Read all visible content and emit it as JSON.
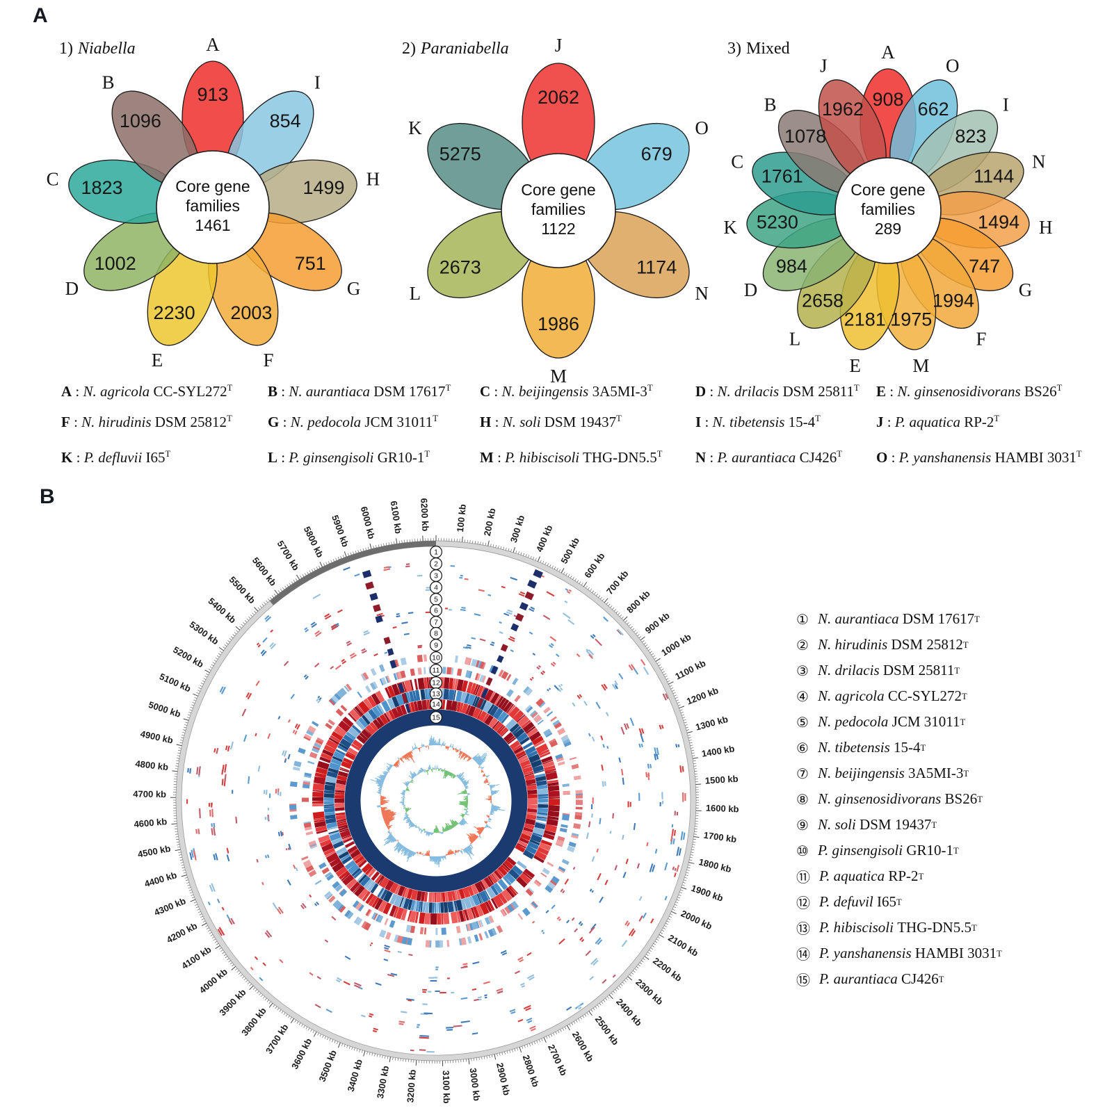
{
  "panelA": {
    "label": "A",
    "flowers": [
      {
        "title_prefix": "1)",
        "title_name": "Niabella",
        "core": {
          "line1": "Core gene",
          "line2": "families",
          "value": "1461"
        },
        "petals": [
          {
            "letter": "A",
            "value": "913",
            "color": "#ee2f2b"
          },
          {
            "letter": "I",
            "value": "854",
            "color": "#88c7e2"
          },
          {
            "letter": "H",
            "value": "1499",
            "color": "#b6ad86"
          },
          {
            "letter": "G",
            "value": "751",
            "color": "#f79d33"
          },
          {
            "letter": "F",
            "value": "2003",
            "color": "#f2ab39"
          },
          {
            "letter": "E",
            "value": "2230",
            "color": "#edc52f"
          },
          {
            "letter": "D",
            "value": "1002",
            "color": "#8eb463"
          },
          {
            "letter": "C",
            "value": "1823",
            "color": "#2da99b"
          },
          {
            "letter": "B",
            "value": "1096",
            "color": "#8d6f68"
          }
        ]
      },
      {
        "title_prefix": "2)",
        "title_name": "Paraniabella",
        "core": {
          "line1": "Core gene",
          "line2": "families",
          "value": "1122"
        },
        "petals": [
          {
            "letter": "J",
            "value": "2062",
            "color": "#ee332f"
          },
          {
            "letter": "O",
            "value": "679",
            "color": "#76c3dd"
          },
          {
            "letter": "N",
            "value": "1174",
            "color": "#daa258"
          },
          {
            "letter": "M",
            "value": "1986",
            "color": "#f1ad36"
          },
          {
            "letter": "L",
            "value": "2673",
            "color": "#a6b557"
          },
          {
            "letter": "K",
            "value": "5275",
            "color": "#568e86"
          }
        ]
      },
      {
        "title_prefix": "3)",
        "title_name": "Mixed",
        "core": {
          "line1": "Core gene",
          "line2": "families",
          "value": "289"
        },
        "petals": [
          {
            "letter": "A",
            "value": "908",
            "color": "#ee2f2b"
          },
          {
            "letter": "O",
            "value": "662",
            "color": "#70c0dc"
          },
          {
            "letter": "I",
            "value": "823",
            "color": "#a3c1b3"
          },
          {
            "letter": "N",
            "value": "1144",
            "color": "#b9a56f"
          },
          {
            "letter": "H",
            "value": "1494",
            "color": "#f2a04a"
          },
          {
            "letter": "G",
            "value": "747",
            "color": "#f69d33"
          },
          {
            "letter": "F",
            "value": "1994",
            "color": "#f1a83b"
          },
          {
            "letter": "M",
            "value": "1975",
            "color": "#f2b23d"
          },
          {
            "letter": "E",
            "value": "2181",
            "color": "#efc033"
          },
          {
            "letter": "L",
            "value": "2658",
            "color": "#b5b24d"
          },
          {
            "letter": "D",
            "value": "984",
            "color": "#88b472"
          },
          {
            "letter": "K",
            "value": "5230",
            "color": "#3ea585"
          },
          {
            "letter": "C",
            "value": "1761",
            "color": "#2e9c8f"
          },
          {
            "letter": "B",
            "value": "1078",
            "color": "#8b7a73"
          },
          {
            "letter": "J",
            "value": "1962",
            "color": "#c2514b"
          }
        ]
      }
    ],
    "legend": {
      "sep": " : ",
      "sup": "T",
      "items": [
        {
          "key": "A",
          "species": "N. agricola",
          "strain": "CC-SYL272"
        },
        {
          "key": "B",
          "species": "N. aurantiaca",
          "strain": "DSM 17617"
        },
        {
          "key": "C",
          "species": "N. beijingensis",
          "strain": "3A5MI-3"
        },
        {
          "key": "D",
          "species": "N. drilacis",
          "strain": "DSM 25811"
        },
        {
          "key": "E",
          "species": "N. ginsenosidivorans",
          "strain": "BS26"
        },
        {
          "key": "F",
          "species": "N. hirudinis",
          "strain": "DSM 25812"
        },
        {
          "key": "G",
          "species": "N. pedocola",
          "strain": "JCM 31011"
        },
        {
          "key": "H",
          "species": "N. soli",
          "strain": "DSM 19437"
        },
        {
          "key": "I",
          "species": "N. tibetensis",
          "strain": "15-4"
        },
        {
          "key": "J",
          "species": "P. aquatica",
          "strain": "RP-2"
        },
        {
          "key": "K",
          "species": "P. defluvii",
          "strain": "I65"
        },
        {
          "key": "L",
          "species": "P. ginsengisoli",
          "strain": "GR10-1"
        },
        {
          "key": "M",
          "species": "P. hibiscisoli",
          "strain": "THG-DN5.5"
        },
        {
          "key": "N",
          "species": "P. aurantiaca",
          "strain": "CJ426"
        },
        {
          "key": "O",
          "species": "P. yanshanensis",
          "strain": "HAMBI 3031"
        }
      ]
    }
  },
  "panelB": {
    "label": "B",
    "scale": {
      "unit": "kb",
      "genome_length_kb": 6250,
      "major_step_kb": 100,
      "minor_step_kb": 10,
      "first_label_kb": 100,
      "last_label_kb": 6200,
      "dark_segment_start_kb": 5560,
      "dark_segment_end_kb": 6250
    },
    "rings": [
      "1",
      "2",
      "3",
      "4",
      "5",
      "6",
      "7",
      "8",
      "9",
      "10",
      "11",
      "12",
      "13",
      "14",
      "15"
    ],
    "highlight_columns_kb": [
      420,
      5952
    ],
    "colors": {
      "scale_band": "#d6d6d6",
      "scale_edge": "#9a9a9a",
      "scale_dark_segment": "#6d6d6d",
      "tick": "#444444",
      "sparse_blues": [
        "#93bedc",
        "#5b99cf",
        "#3f7ab8"
      ],
      "sparse_reds": [
        "#e26a6a",
        "#d43f3f",
        "#c05a6b"
      ],
      "medium_blues": [
        "#aacbe6",
        "#82b4da",
        "#5b99cf"
      ],
      "medium_reds": [
        "#f0a3a3",
        "#e57f7f",
        "#dc5f5f"
      ],
      "dense_reds": [
        "#cf1d1d",
        "#e23838",
        "#ab1320",
        "#ef5c5c",
        "#950e1b"
      ],
      "dense_blues": [
        "#2e6fae",
        "#4f93cc",
        "#1d4f86",
        "#8ab8dd",
        "#143f6f"
      ],
      "navy_ring": "#1b3a70",
      "highlight_navy": "#1c2f6b",
      "highlight_maroon": "#8e1b2a",
      "gc_out": "#85bcdf",
      "gc_in": "#ef7757",
      "skew_out": "#85bcdf",
      "skew_in": "#74c276"
    },
    "legend": {
      "sup": "T",
      "items": [
        {
          "num": "①",
          "species": "N. aurantiaca",
          "strain": "DSM 17617"
        },
        {
          "num": "②",
          "species": "N. hirudinis",
          "strain": "DSM 25812"
        },
        {
          "num": "③",
          "species": "N. drilacis",
          "strain": "DSM 25811"
        },
        {
          "num": "④",
          "species": "N. agricola",
          "strain": "CC-SYL272"
        },
        {
          "num": "⑤",
          "species": "N. pedocola",
          "strain": "JCM 31011"
        },
        {
          "num": "⑥",
          "species": "N. tibetensis",
          "strain": "15-4"
        },
        {
          "num": "⑦",
          "species": "N. beijingensis",
          "strain": "3A5MI-3"
        },
        {
          "num": "⑧",
          "species": "N. ginsenosidivorans",
          "strain": "BS26"
        },
        {
          "num": "⑨",
          "species": "N. soli",
          "strain": "DSM 19437"
        },
        {
          "num": "⑩",
          "species": "P. ginsengisoli",
          "strain": "GR10-1"
        },
        {
          "num": "⑪",
          "species": "P. aquatica",
          "strain": "RP-2"
        },
        {
          "num": "⑫",
          "species": "P. defuvil",
          "strain": "I65"
        },
        {
          "num": "⑬",
          "species": "P. hibiscisoli",
          "strain": "THG-DN5.5"
        },
        {
          "num": "⑭",
          "species": "P. yanshanensis",
          "strain": "HAMBI 3031"
        },
        {
          "num": "⑮",
          "species": "P. aurantiaca",
          "strain": "CJ426"
        }
      ]
    }
  }
}
